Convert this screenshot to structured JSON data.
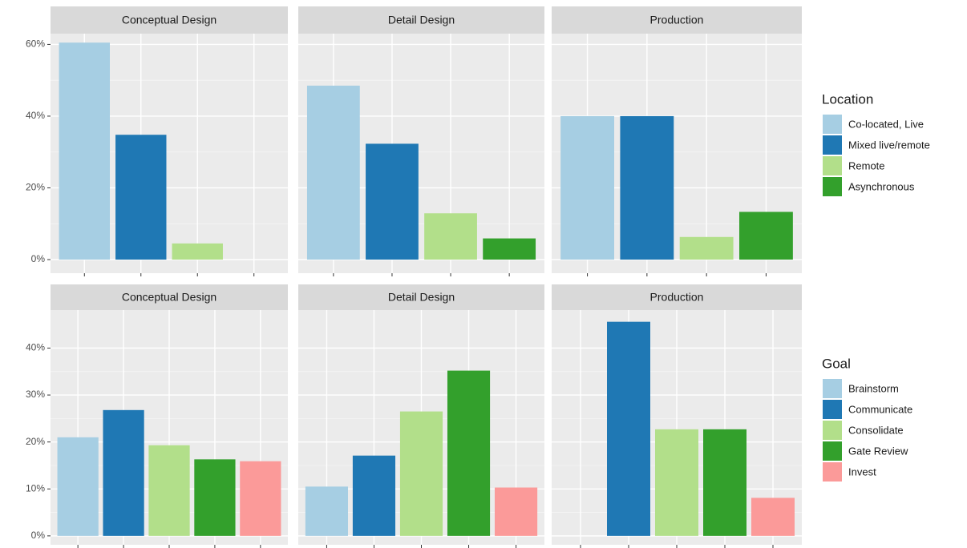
{
  "chart_data": [
    {
      "type": "bar",
      "facets": [
        "Conceptual Design",
        "Detail Design",
        "Production"
      ],
      "legend_title": "Location",
      "series": [
        {
          "name": "Co-located, Live",
          "color": "#a6cee3",
          "values": [
            60.5,
            48.5,
            40
          ]
        },
        {
          "name": "Mixed live/remote",
          "color": "#1f78b4",
          "values": [
            34.8,
            32.3,
            40
          ]
        },
        {
          "name": "Remote",
          "color": "#b2df8a",
          "values": [
            4.5,
            12.9,
            6.3
          ]
        },
        {
          "name": "Asynchronous",
          "color": "#33a02c",
          "values": [
            null,
            5.9,
            13.3
          ]
        }
      ],
      "ylim": [
        -3.8,
        63
      ],
      "yticks": [
        {
          "value": 0,
          "label": "0%"
        },
        {
          "value": 20,
          "label": "20%"
        },
        {
          "value": 40,
          "label": "40%"
        },
        {
          "value": 60,
          "label": "60%"
        }
      ],
      "grid": true
    },
    {
      "type": "bar",
      "facets": [
        "Conceptual Design",
        "Detail Design",
        "Production"
      ],
      "legend_title": "Goal",
      "series": [
        {
          "name": "Brainstorm",
          "color": "#a6cee3",
          "values": [
            21.0,
            10.5,
            null
          ]
        },
        {
          "name": "Communicate",
          "color": "#1f78b4",
          "values": [
            26.8,
            17.1,
            45.6
          ]
        },
        {
          "name": "Consolidate",
          "color": "#b2df8a",
          "values": [
            19.3,
            26.5,
            22.7
          ]
        },
        {
          "name": "Gate Review",
          "color": "#33a02c",
          "values": [
            16.3,
            35.2,
            22.7
          ]
        },
        {
          "name": "Invest",
          "color": "#fb9a99",
          "values": [
            15.9,
            10.3,
            8.1
          ]
        }
      ],
      "ylim": [
        -1.9,
        48.1
      ],
      "yticks": [
        {
          "value": 0,
          "label": "0%"
        },
        {
          "value": 10,
          "label": "10%"
        },
        {
          "value": 20,
          "label": "20%"
        },
        {
          "value": 30,
          "label": "30%"
        },
        {
          "value": 40,
          "label": "40%"
        }
      ],
      "grid": true
    }
  ]
}
